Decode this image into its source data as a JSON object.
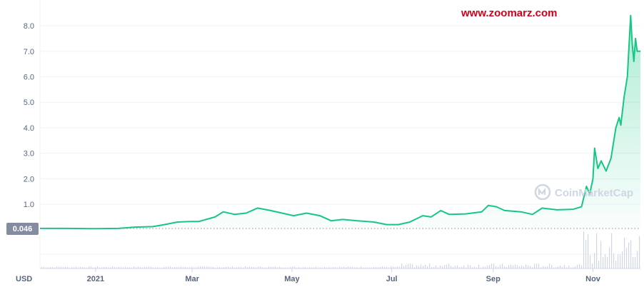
{
  "watermark": {
    "url": "www.zoomarz.com",
    "brand": "CoinMarketCap",
    "brand_icon": "coinmarketcap-logo-icon"
  },
  "currency_label": "USD",
  "current_value_label": "0.046",
  "colors": {
    "line": "#16c784",
    "area_top": "#16c784",
    "grid": "#eff2f5",
    "current_badge": "#858ca2",
    "volume": "#cfd6e4",
    "watermark_url": "#d0021b"
  },
  "chart_data": {
    "type": "area",
    "title": "",
    "xlabel": "",
    "ylabel": "",
    "ylim": [
      0,
      8.9
    ],
    "y_ticks": [
      "1.0",
      "2.0",
      "3.0",
      "4.0",
      "5.0",
      "6.0",
      "7.0",
      "8.0"
    ],
    "x_ticks": [
      {
        "label": "2021",
        "date": "2021-01-01"
      },
      {
        "label": "Mar",
        "date": "2021-03-01"
      },
      {
        "label": "May",
        "date": "2021-05-01"
      },
      {
        "label": "Jul",
        "date": "2021-07-01"
      },
      {
        "label": "Sep",
        "date": "2021-09-01"
      },
      {
        "label": "Nov",
        "date": "2021-11-01"
      }
    ],
    "x_range": [
      "2020-11-28",
      "2021-11-30"
    ],
    "current_reference": 0.046,
    "series": [
      {
        "points": [
          [
            "2020-11-28",
            0.05
          ],
          [
            "2020-12-15",
            0.05
          ],
          [
            "2021-01-01",
            0.04
          ],
          [
            "2021-01-15",
            0.05
          ],
          [
            "2021-01-25",
            0.1
          ],
          [
            "2021-02-05",
            0.12
          ],
          [
            "2021-02-12",
            0.2
          ],
          [
            "2021-02-20",
            0.3
          ],
          [
            "2021-02-28",
            0.32
          ],
          [
            "2021-03-05",
            0.32
          ],
          [
            "2021-03-15",
            0.5
          ],
          [
            "2021-03-20",
            0.7
          ],
          [
            "2021-03-27",
            0.6
          ],
          [
            "2021-04-03",
            0.65
          ],
          [
            "2021-04-10",
            0.85
          ],
          [
            "2021-04-18",
            0.75
          ],
          [
            "2021-04-25",
            0.65
          ],
          [
            "2021-05-02",
            0.55
          ],
          [
            "2021-05-10",
            0.65
          ],
          [
            "2021-05-18",
            0.55
          ],
          [
            "2021-05-25",
            0.35
          ],
          [
            "2021-06-01",
            0.4
          ],
          [
            "2021-06-10",
            0.35
          ],
          [
            "2021-06-20",
            0.3
          ],
          [
            "2021-06-28",
            0.2
          ],
          [
            "2021-07-05",
            0.2
          ],
          [
            "2021-07-12",
            0.3
          ],
          [
            "2021-07-20",
            0.55
          ],
          [
            "2021-07-25",
            0.5
          ],
          [
            "2021-07-31",
            0.75
          ],
          [
            "2021-08-05",
            0.6
          ],
          [
            "2021-08-15",
            0.62
          ],
          [
            "2021-08-25",
            0.7
          ],
          [
            "2021-08-29",
            0.95
          ],
          [
            "2021-09-03",
            0.9
          ],
          [
            "2021-09-08",
            0.75
          ],
          [
            "2021-09-18",
            0.7
          ],
          [
            "2021-09-25",
            0.6
          ],
          [
            "2021-10-01",
            0.85
          ],
          [
            "2021-10-10",
            0.78
          ],
          [
            "2021-10-20",
            0.8
          ],
          [
            "2021-10-25",
            0.9
          ],
          [
            "2021-10-28",
            1.7
          ],
          [
            "2021-10-30",
            1.4
          ],
          [
            "2021-11-01",
            2.0
          ],
          [
            "2021-11-02",
            3.2
          ],
          [
            "2021-11-04",
            2.4
          ],
          [
            "2021-11-06",
            2.7
          ],
          [
            "2021-11-09",
            2.3
          ],
          [
            "2021-11-12",
            2.8
          ],
          [
            "2021-11-15",
            4.0
          ],
          [
            "2021-11-17",
            4.4
          ],
          [
            "2021-11-18",
            4.1
          ],
          [
            "2021-11-20",
            5.2
          ],
          [
            "2021-11-22",
            6.0
          ],
          [
            "2021-11-24",
            8.4
          ],
          [
            "2021-11-25",
            7.3
          ],
          [
            "2021-11-26",
            6.6
          ],
          [
            "2021-11-27",
            7.5
          ],
          [
            "2021-11-28",
            7.0
          ],
          [
            "2021-11-30",
            7.0
          ]
        ]
      }
    ]
  }
}
